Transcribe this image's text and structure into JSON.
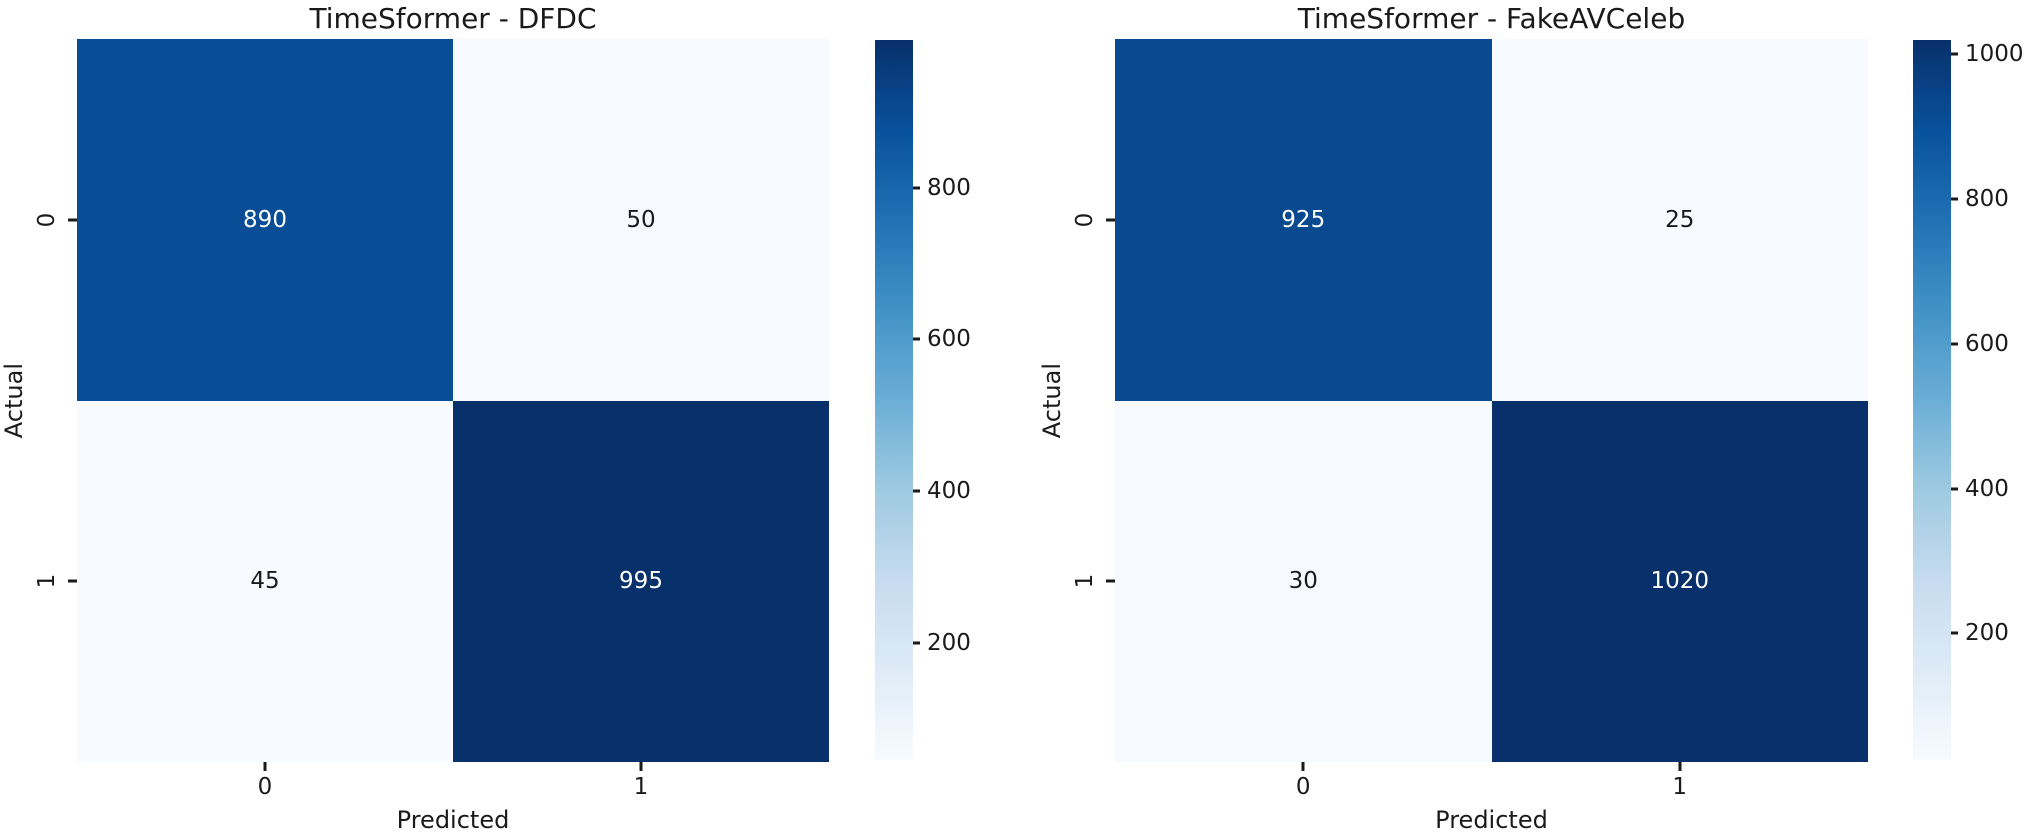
{
  "figure": {
    "background": "#ffffff",
    "text_color": "#1a1a1a"
  },
  "colors": {
    "colormap_name": "Blues",
    "colormap_stops": [
      "#f7fbff",
      "#deebf7",
      "#c6dbef",
      "#9ecae1",
      "#6baed6",
      "#4292c6",
      "#2171b5",
      "#08519c",
      "#08306b"
    ],
    "annot_on_dark": "#ffffff",
    "annot_on_light": "#1a1a1a"
  },
  "chart_data": [
    {
      "type": "heatmap",
      "title": "TimeSformer - DFDC",
      "xlabel": "Predicted",
      "ylabel": "Actual",
      "x_tick_labels": [
        "0",
        "1"
      ],
      "y_tick_labels": [
        "0",
        "1"
      ],
      "matrix": [
        [
          890,
          50
        ],
        [
          45,
          995
        ]
      ],
      "vmin": 45,
      "vmax": 995,
      "colorbar_ticks": [
        800,
        600,
        400,
        200
      ],
      "legend_position": "colorbar-right",
      "grid": false
    },
    {
      "type": "heatmap",
      "title": "TimeSformer - FakeAVCeleb",
      "xlabel": "Predicted",
      "ylabel": "Actual",
      "x_tick_labels": [
        "0",
        "1"
      ],
      "y_tick_labels": [
        "0",
        "1"
      ],
      "matrix": [
        [
          925,
          25
        ],
        [
          30,
          1020
        ]
      ],
      "vmin": 25,
      "vmax": 1020,
      "colorbar_ticks": [
        1000,
        800,
        600,
        400,
        200
      ],
      "legend_position": "colorbar-right",
      "grid": false
    }
  ]
}
